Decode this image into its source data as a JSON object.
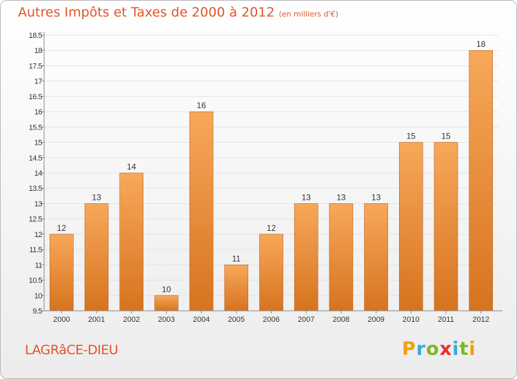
{
  "title": "Autres Impôts et Taxes de 2000 à 2012",
  "subtitle": "(en milliers d'€)",
  "location": "LAGRâCE-DIEU",
  "logo": {
    "letters": [
      "P",
      "r",
      "o",
      "x",
      "i",
      "t",
      "i"
    ],
    "colors": [
      "#f0a000",
      "#39a9dc",
      "#7ab829",
      "#e2332b",
      "#39a9dc",
      "#7ab829",
      "#f0a000"
    ]
  },
  "colors": {
    "accent": "#e0552a",
    "bar_top": "#f7a85a",
    "bar_bottom": "#d7731f",
    "bar_stroke": "#b9601a",
    "grid": "#e3e3e3",
    "axis": "#888888",
    "text": "#333333"
  },
  "chart_data": {
    "type": "bar",
    "categories": [
      "2000",
      "2001",
      "2002",
      "2003",
      "2004",
      "2005",
      "2006",
      "2007",
      "2008",
      "2009",
      "2010",
      "2011",
      "2012"
    ],
    "values": [
      12,
      13,
      14,
      10,
      16,
      11,
      12,
      13,
      13,
      13,
      15,
      15,
      18
    ],
    "data_labels": [
      "12",
      "13",
      "14",
      "10",
      "16",
      "11",
      "12",
      "13",
      "13",
      "13",
      "15",
      "15",
      "18"
    ],
    "ylim": [
      9.5,
      18.5
    ],
    "yticks": [
      9.5,
      10,
      10.5,
      11,
      11.5,
      12,
      12.5,
      13,
      13.5,
      14,
      14.5,
      15,
      15.5,
      16,
      16.5,
      17,
      17.5,
      18,
      18.5
    ],
    "ytick_labels": [
      "9.5",
      "10",
      "10.5",
      "11",
      "11.5",
      "12",
      "12.5",
      "13",
      "13.5",
      "14",
      "14.5",
      "15",
      "15.5",
      "16",
      "16.5",
      "17",
      "17.5",
      "18",
      "18.5"
    ],
    "grid": true,
    "legend": "none"
  }
}
